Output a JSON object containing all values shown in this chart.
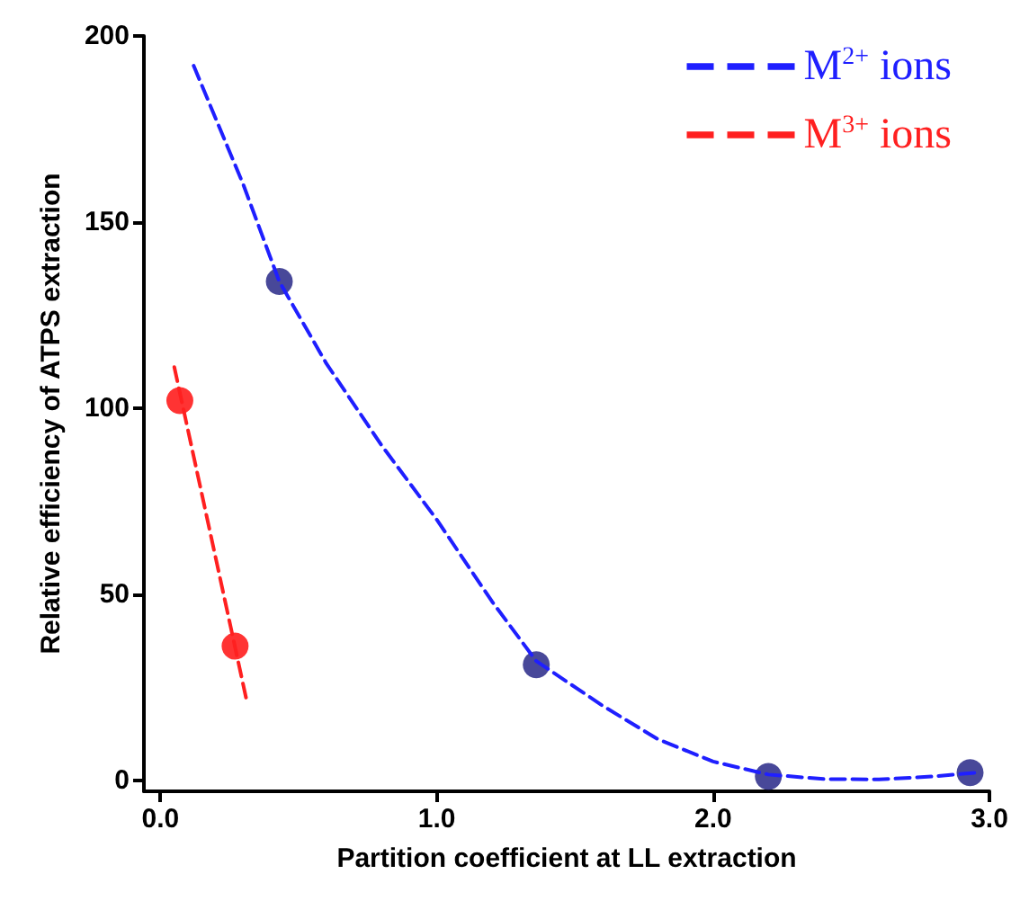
{
  "chart_data": {
    "type": "scatter",
    "xlabel": "Partition coefficient at LL extraction",
    "ylabel": "Relative efficiency of ATPS extraction",
    "xlim": [
      -0.06,
      3.0
    ],
    "ylim": [
      -3,
      200
    ],
    "xticks": [
      {
        "value": 0,
        "label": "0.0"
      },
      {
        "value": 1,
        "label": "1.0"
      },
      {
        "value": 2,
        "label": "2.0"
      },
      {
        "value": 3,
        "label": "3.0"
      }
    ],
    "yticks": [
      0,
      50,
      100,
      150,
      200
    ],
    "grid": false,
    "legend": "top right",
    "series": [
      {
        "name": "M$^{2+}$ ions",
        "type": "line",
        "color": "#1f1fff",
        "line_style": "dashed",
        "marker": "none",
        "x": [
          0.12,
          0.3,
          0.43,
          0.6,
          0.8,
          1.0,
          1.2,
          1.36,
          1.6,
          1.8,
          2.0,
          2.2,
          2.4,
          2.6,
          2.8,
          2.95
        ],
        "values": [
          192,
          160,
          134,
          112,
          90,
          70,
          48,
          32,
          20,
          11,
          5,
          1.5,
          0.3,
          0.2,
          1,
          2
        ]
      },
      {
        "name": "M$^{3+}$ ions",
        "type": "line",
        "color": "#ff2020",
        "line_style": "dashed",
        "marker": "none",
        "x": [
          0.05,
          0.31
        ],
        "values": [
          111,
          22
        ]
      },
      {
        "type": "scatter",
        "color": "#1a1a80",
        "marker": "circle",
        "x": [
          0.43,
          1.36,
          2.2,
          2.93
        ],
        "values": [
          134,
          31,
          1,
          2
        ]
      },
      {
        "type": "scatter",
        "color": "#ff0000",
        "marker": "circle",
        "x": [
          0.07,
          0.27
        ],
        "values": [
          102,
          36
        ]
      }
    ]
  }
}
